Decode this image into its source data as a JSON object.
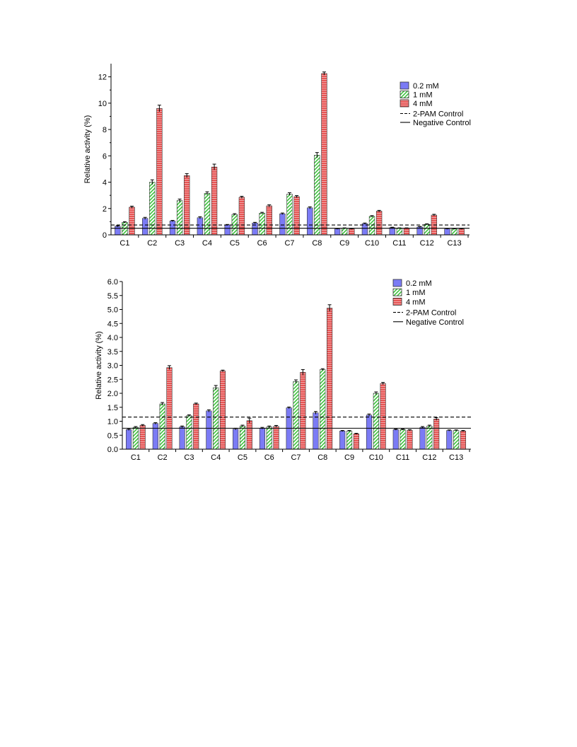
{
  "colors": {
    "low": "#7b7bf5",
    "mid": "#3ec43e",
    "high": "#e65454",
    "axis": "#000000"
  },
  "chart_data": [
    {
      "type": "bar",
      "ylabel": "Relative activity (%)",
      "ylim": [
        0,
        13
      ],
      "yticks": [
        0,
        2,
        4,
        6,
        8,
        10,
        12
      ],
      "ytick_labels": [
        "0",
        "2",
        "4",
        "6",
        "8",
        "10",
        "12"
      ],
      "minor_tick_step": 1,
      "categories": [
        "C1",
        "C2",
        "C3",
        "C4",
        "C5",
        "C6",
        "C7",
        "C8",
        "C9",
        "C10",
        "C11",
        "C12",
        "C13"
      ],
      "series": [
        {
          "name": "0.2 mM",
          "pattern": "solid",
          "color": "#7b7bf5",
          "values": [
            0.65,
            1.25,
            1.05,
            1.3,
            0.75,
            0.9,
            1.6,
            2.05,
            0.45,
            0.85,
            0.55,
            0.6,
            0.45
          ],
          "errors": [
            0.05,
            0.08,
            0.05,
            0.08,
            0.04,
            0.05,
            0.06,
            0.08,
            0.03,
            0.05,
            0.03,
            0.04,
            0.03
          ]
        },
        {
          "name": "1 mM",
          "pattern": "diagonal",
          "color": "#3ec43e",
          "values": [
            0.95,
            4.0,
            2.6,
            3.15,
            1.55,
            1.65,
            3.1,
            6.05,
            0.5,
            1.4,
            0.5,
            0.8,
            0.45
          ],
          "errors": [
            0.05,
            0.18,
            0.12,
            0.12,
            0.06,
            0.06,
            0.1,
            0.2,
            0.03,
            0.06,
            0.03,
            0.04,
            0.03
          ]
        },
        {
          "name": "4 mM",
          "pattern": "horizontal",
          "color": "#e65454",
          "values": [
            2.1,
            9.6,
            4.5,
            5.15,
            2.85,
            2.2,
            2.9,
            12.25,
            0.45,
            1.8,
            0.5,
            1.5,
            0.45
          ],
          "errors": [
            0.08,
            0.25,
            0.15,
            0.22,
            0.08,
            0.08,
            0.08,
            0.12,
            0.03,
            0.06,
            0.03,
            0.06,
            0.03
          ]
        }
      ],
      "reference_lines": [
        {
          "name": "2-PAM Control",
          "style": "dashed",
          "value": 0.75
        },
        {
          "name": "Negative Control",
          "style": "solid",
          "value": 0.5
        }
      ],
      "legend_position": "top-right",
      "grid": false
    },
    {
      "type": "bar",
      "ylabel": "Relative activity (%)",
      "ylim": [
        0,
        6.0
      ],
      "yticks": [
        0,
        0.5,
        1,
        1.5,
        2,
        2.5,
        3,
        3.5,
        4,
        4.5,
        5,
        5.5,
        6
      ],
      "ytick_labels": [
        "0.0",
        "0.5",
        "1.0",
        "1.5",
        "2.0",
        "2.5",
        "3.0",
        "3.5",
        "4.0",
        "4.5",
        "5.0",
        "5.5",
        "6.0"
      ],
      "minor_tick_step": 0,
      "categories": [
        "C1",
        "C2",
        "C3",
        "C4",
        "C5",
        "C6",
        "C7",
        "C8",
        "C9",
        "C10",
        "C11",
        "C12",
        "C13"
      ],
      "series": [
        {
          "name": "0.2 mM",
          "pattern": "solid",
          "color": "#7b7bf5",
          "values": [
            0.7,
            0.92,
            0.8,
            1.37,
            0.72,
            0.75,
            1.48,
            1.3,
            0.65,
            1.22,
            0.7,
            0.78,
            0.67
          ],
          "errors": [
            0.03,
            0.03,
            0.03,
            0.04,
            0.03,
            0.03,
            0.03,
            0.05,
            0.02,
            0.04,
            0.02,
            0.03,
            0.02
          ]
        },
        {
          "name": "1 mM",
          "pattern": "diagonal",
          "color": "#3ec43e",
          "values": [
            0.78,
            1.62,
            1.2,
            2.2,
            0.83,
            0.8,
            2.42,
            2.85,
            0.65,
            2.0,
            0.7,
            0.83,
            0.67
          ],
          "errors": [
            0.03,
            0.05,
            0.03,
            0.08,
            0.03,
            0.03,
            0.06,
            0.03,
            0.02,
            0.05,
            0.02,
            0.03,
            0.02
          ]
        },
        {
          "name": "4 mM",
          "pattern": "horizontal",
          "color": "#e65454",
          "values": [
            0.85,
            2.92,
            1.62,
            2.8,
            1.02,
            0.82,
            2.75,
            5.05,
            0.55,
            2.35,
            0.68,
            1.08,
            0.65
          ],
          "errors": [
            0.03,
            0.07,
            0.03,
            0.03,
            0.09,
            0.03,
            0.1,
            0.12,
            0.02,
            0.04,
            0.02,
            0.05,
            0.02
          ]
        }
      ],
      "reference_lines": [
        {
          "name": "2-PAM Control",
          "style": "dashed",
          "value": 1.15
        },
        {
          "name": "Negative Control",
          "style": "solid",
          "value": 0.75
        }
      ],
      "legend_position": "top-right",
      "grid": false
    }
  ]
}
